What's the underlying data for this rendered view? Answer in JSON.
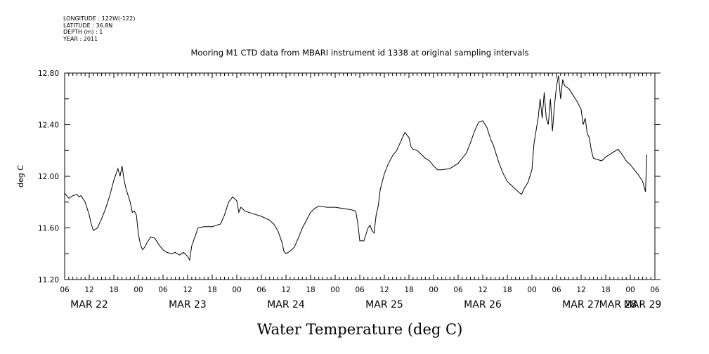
{
  "metadata": {
    "longitude": "LONGITUDE : 122W(-122)",
    "latitude": "LATITUDE : 36.8N",
    "depth": "DEPTH (m) : 1",
    "year": "YEAR : 2011"
  },
  "chart_data": {
    "type": "line",
    "title": "Mooring M1 CTD data from MBARI instrument id 1338 at original sampling intervals",
    "xlabel": "Water Temperature (deg C)",
    "ylabel": "deg C",
    "x_unit": "hours since MAR 22 00:00",
    "xlim": [
      6,
      150
    ],
    "ylim": [
      11.2,
      12.8
    ],
    "y_ticks": [
      "11.20",
      "11.60",
      "12.00",
      "12.40",
      "12.80"
    ],
    "x_tick_labels": [
      {
        "t": 6,
        "label": "06"
      },
      {
        "t": 12,
        "label": "12"
      },
      {
        "t": 18,
        "label": "18"
      },
      {
        "t": 24,
        "label": "00"
      },
      {
        "t": 30,
        "label": "06"
      },
      {
        "t": 36,
        "label": "12"
      },
      {
        "t": 42,
        "label": "18"
      },
      {
        "t": 48,
        "label": "00"
      },
      {
        "t": 54,
        "label": "06"
      },
      {
        "t": 60,
        "label": "12"
      },
      {
        "t": 66,
        "label": "18"
      },
      {
        "t": 72,
        "label": "00"
      },
      {
        "t": 78,
        "label": "06"
      },
      {
        "t": 84,
        "label": "12"
      },
      {
        "t": 90,
        "label": "18"
      },
      {
        "t": 96,
        "label": "00"
      },
      {
        "t": 102,
        "label": "06"
      },
      {
        "t": 108,
        "label": "12"
      },
      {
        "t": 114,
        "label": "18"
      },
      {
        "t": 120,
        "label": "00"
      },
      {
        "t": 126,
        "label": "06"
      },
      {
        "t": 132,
        "label": "12"
      },
      {
        "t": 138,
        "label": "18"
      },
      {
        "t": 144,
        "label": "00"
      },
      {
        "t": 150,
        "label": "06"
      }
    ],
    "date_labels": [
      {
        "t": 12,
        "label": "MAR 22"
      },
      {
        "t": 36,
        "label": "MAR 23"
      },
      {
        "t": 60,
        "label": "MAR 24"
      },
      {
        "t": 84,
        "label": "MAR 25"
      },
      {
        "t": 108,
        "label": "MAR 26"
      },
      {
        "t": 132,
        "label": "MAR 27"
      },
      {
        "t": 141,
        "label": "MAR 28"
      },
      {
        "t": 147,
        "label": "MAR 29"
      }
    ],
    "series": [
      {
        "points": [
          [
            6.0,
            11.87
          ],
          [
            6.5,
            11.85
          ],
          [
            7.0,
            11.83
          ],
          [
            8.0,
            11.85
          ],
          [
            9.0,
            11.86
          ],
          [
            9.5,
            11.84
          ],
          [
            10.0,
            11.85
          ],
          [
            11.0,
            11.8
          ],
          [
            12.0,
            11.7
          ],
          [
            12.5,
            11.63
          ],
          [
            13.0,
            11.58
          ],
          [
            14.0,
            11.6
          ],
          [
            15.0,
            11.67
          ],
          [
            16.0,
            11.75
          ],
          [
            17.0,
            11.85
          ],
          [
            18.0,
            11.97
          ],
          [
            19.0,
            12.06
          ],
          [
            19.5,
            12.0
          ],
          [
            20.0,
            12.08
          ],
          [
            20.5,
            11.97
          ],
          [
            21.0,
            11.9
          ],
          [
            22.0,
            11.8
          ],
          [
            22.5,
            11.72
          ],
          [
            23.0,
            11.73
          ],
          [
            23.5,
            11.7
          ],
          [
            24.0,
            11.55
          ],
          [
            24.5,
            11.47
          ],
          [
            25.0,
            11.43
          ],
          [
            25.5,
            11.45
          ],
          [
            26.0,
            11.48
          ],
          [
            27.0,
            11.53
          ],
          [
            28.0,
            11.52
          ],
          [
            29.0,
            11.47
          ],
          [
            30.0,
            11.43
          ],
          [
            31.0,
            11.41
          ],
          [
            32.0,
            11.4
          ],
          [
            33.0,
            11.41
          ],
          [
            34.0,
            11.39
          ],
          [
            35.0,
            11.41
          ],
          [
            36.0,
            11.38
          ],
          [
            36.5,
            11.35
          ],
          [
            37.0,
            11.46
          ],
          [
            38.0,
            11.55
          ],
          [
            38.5,
            11.6
          ],
          [
            40.0,
            11.61
          ],
          [
            42.0,
            11.61
          ],
          [
            43.0,
            11.62
          ],
          [
            44.0,
            11.63
          ],
          [
            45.0,
            11.7
          ],
          [
            46.0,
            11.8
          ],
          [
            47.0,
            11.84
          ],
          [
            48.0,
            11.81
          ],
          [
            48.5,
            11.72
          ],
          [
            49.0,
            11.76
          ],
          [
            50.0,
            11.73
          ],
          [
            52.0,
            11.71
          ],
          [
            54.0,
            11.69
          ],
          [
            56.0,
            11.66
          ],
          [
            57.0,
            11.63
          ],
          [
            58.0,
            11.58
          ],
          [
            59.0,
            11.49
          ],
          [
            59.5,
            11.42
          ],
          [
            60.0,
            11.4
          ],
          [
            61.0,
            11.42
          ],
          [
            62.0,
            11.45
          ],
          [
            63.0,
            11.52
          ],
          [
            64.0,
            11.6
          ],
          [
            65.0,
            11.66
          ],
          [
            66.0,
            11.72
          ],
          [
            67.0,
            11.75
          ],
          [
            68.0,
            11.77
          ],
          [
            70.0,
            11.76
          ],
          [
            72.0,
            11.76
          ],
          [
            74.0,
            11.75
          ],
          [
            76.0,
            11.74
          ],
          [
            77.0,
            11.73
          ],
          [
            77.5,
            11.64
          ],
          [
            78.0,
            11.5
          ],
          [
            79.0,
            11.5
          ],
          [
            80.0,
            11.6
          ],
          [
            80.5,
            11.62
          ],
          [
            81.0,
            11.58
          ],
          [
            81.5,
            11.56
          ],
          [
            82.0,
            11.7
          ],
          [
            82.5,
            11.77
          ],
          [
            83.0,
            11.9
          ],
          [
            84.0,
            12.02
          ],
          [
            85.0,
            12.1
          ],
          [
            86.0,
            12.16
          ],
          [
            87.0,
            12.2
          ],
          [
            88.0,
            12.27
          ],
          [
            89.0,
            12.34
          ],
          [
            90.0,
            12.3
          ],
          [
            90.5,
            12.23
          ],
          [
            91.0,
            12.21
          ],
          [
            92.0,
            12.2
          ],
          [
            93.0,
            12.17
          ],
          [
            94.0,
            12.14
          ],
          [
            95.0,
            12.12
          ],
          [
            96.0,
            12.08
          ],
          [
            97.0,
            12.05
          ],
          [
            98.0,
            12.05
          ],
          [
            100.0,
            12.06
          ],
          [
            102.0,
            12.1
          ],
          [
            104.0,
            12.18
          ],
          [
            105.0,
            12.26
          ],
          [
            106.0,
            12.35
          ],
          [
            107.0,
            12.42
          ],
          [
            108.0,
            12.43
          ],
          [
            109.0,
            12.38
          ],
          [
            110.0,
            12.28
          ],
          [
            110.5,
            12.25
          ],
          [
            111.0,
            12.2
          ],
          [
            112.0,
            12.1
          ],
          [
            113.0,
            12.02
          ],
          [
            114.0,
            11.96
          ],
          [
            115.0,
            11.93
          ],
          [
            116.0,
            11.9
          ],
          [
            117.0,
            11.87
          ],
          [
            117.5,
            11.86
          ],
          [
            118.0,
            11.9
          ],
          [
            119.0,
            11.95
          ],
          [
            120.0,
            12.05
          ],
          [
            120.5,
            12.25
          ],
          [
            121.0,
            12.35
          ],
          [
            121.5,
            12.45
          ],
          [
            122.0,
            12.6
          ],
          [
            122.5,
            12.45
          ],
          [
            123.0,
            12.65
          ],
          [
            123.5,
            12.45
          ],
          [
            124.0,
            12.4
          ],
          [
            124.5,
            12.6
          ],
          [
            125.0,
            12.35
          ],
          [
            125.5,
            12.55
          ],
          [
            126.0,
            12.7
          ],
          [
            126.5,
            12.78
          ],
          [
            127.0,
            12.6
          ],
          [
            127.5,
            12.75
          ],
          [
            128.0,
            12.7
          ],
          [
            129.0,
            12.68
          ],
          [
            130.0,
            12.63
          ],
          [
            131.0,
            12.58
          ],
          [
            132.0,
            12.52
          ],
          [
            132.5,
            12.4
          ],
          [
            133.0,
            12.45
          ],
          [
            133.5,
            12.33
          ],
          [
            134.0,
            12.3
          ],
          [
            134.5,
            12.2
          ],
          [
            135.0,
            12.14
          ],
          [
            136.0,
            12.13
          ],
          [
            137.0,
            12.12
          ],
          [
            138.0,
            12.15
          ],
          [
            139.0,
            12.17
          ],
          [
            140.0,
            12.19
          ],
          [
            141.0,
            12.21
          ],
          [
            142.0,
            12.17
          ],
          [
            143.0,
            12.12
          ],
          [
            144.0,
            12.09
          ],
          [
            145.0,
            12.05
          ],
          [
            146.0,
            12.01
          ],
          [
            147.0,
            11.96
          ],
          [
            147.7,
            11.88
          ],
          [
            148.0,
            12.14
          ],
          [
            148.05,
            12.17
          ]
        ]
      }
    ]
  }
}
